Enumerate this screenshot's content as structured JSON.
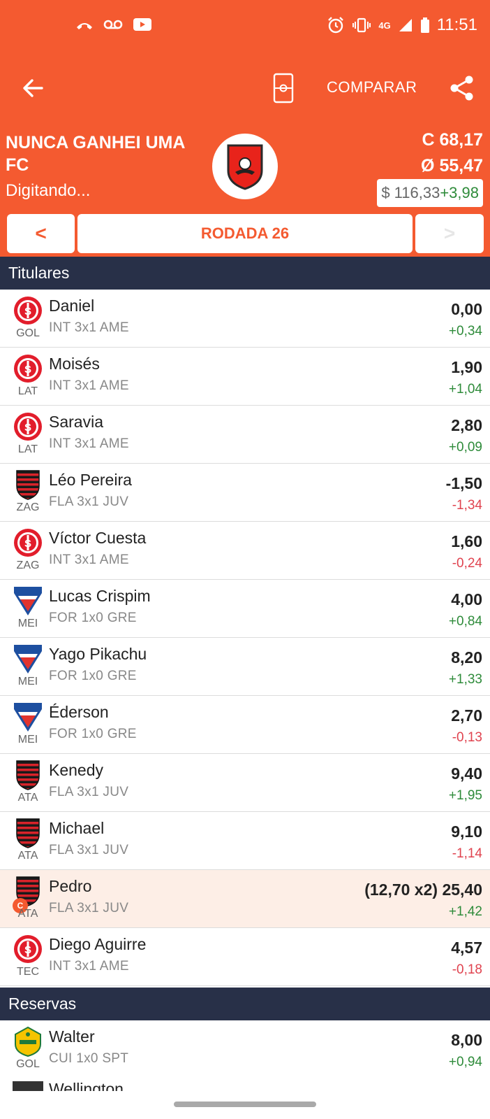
{
  "status_bar": {
    "time": "11:51",
    "network": "4G",
    "left_icons": [
      "missed-call-icon",
      "voicemail-icon",
      "youtube-icon"
    ],
    "right_icons": [
      "alarm-icon",
      "vibrate-icon",
      "signal-icon",
      "battery-icon"
    ]
  },
  "toolbar": {
    "compare_label": "COMPARAR"
  },
  "team": {
    "name": "NUNCA GANHEI UMA FC",
    "status": "Digitando...",
    "stat_c": "C 68,17",
    "stat_avg": "Ø 55,47",
    "balance": "$ 116,33",
    "balance_delta": "+3,98"
  },
  "round_nav": {
    "prev": "<",
    "label": "RODADA 26",
    "next": ">"
  },
  "sections": {
    "starters": "Titulares",
    "reserves": "Reservas"
  },
  "starters": [
    {
      "name": "Daniel",
      "pos": "GOL",
      "match": "INT 3x1 AME",
      "score": "0,00",
      "variation": "+0,34",
      "club": "inter"
    },
    {
      "name": "Moisés",
      "pos": "LAT",
      "match": "INT 3x1 AME",
      "score": "1,90",
      "variation": "+1,04",
      "club": "inter"
    },
    {
      "name": "Saravia",
      "pos": "LAT",
      "match": "INT 3x1 AME",
      "score": "2,80",
      "variation": "+0,09",
      "club": "inter"
    },
    {
      "name": "Léo Pereira",
      "pos": "ZAG",
      "match": "FLA 3x1 JUV",
      "score": "-1,50",
      "variation": "-1,34",
      "club": "flamengo"
    },
    {
      "name": "Víctor Cuesta",
      "pos": "ZAG",
      "match": "INT 3x1 AME",
      "score": "1,60",
      "variation": "-0,24",
      "club": "inter"
    },
    {
      "name": "Lucas Crispim",
      "pos": "MEI",
      "match": "FOR 1x0 GRE",
      "score": "4,00",
      "variation": "+0,84",
      "club": "fortaleza"
    },
    {
      "name": "Yago Pikachu",
      "pos": "MEI",
      "match": "FOR 1x0 GRE",
      "score": "8,20",
      "variation": "+1,33",
      "club": "fortaleza"
    },
    {
      "name": "Éderson",
      "pos": "MEI",
      "match": "FOR 1x0 GRE",
      "score": "2,70",
      "variation": "-0,13",
      "club": "fortaleza"
    },
    {
      "name": "Kenedy",
      "pos": "ATA",
      "match": "FLA 3x1 JUV",
      "score": "9,40",
      "variation": "+1,95",
      "club": "flamengo"
    },
    {
      "name": "Michael",
      "pos": "ATA",
      "match": "FLA 3x1 JUV",
      "score": "9,10",
      "variation": "-1,14",
      "club": "flamengo"
    },
    {
      "name": "Pedro",
      "pos": "ATA",
      "match": "FLA 3x1 JUV",
      "score": "(12,70 x2) 25,40",
      "variation": "+1,42",
      "club": "flamengo",
      "captain": true,
      "captain_badge": "C"
    },
    {
      "name": "Diego Aguirre",
      "pos": "TEC",
      "match": "INT 3x1 AME",
      "score": "4,57",
      "variation": "-0,18",
      "club": "inter"
    }
  ],
  "reserves": [
    {
      "name": "Walter",
      "pos": "GOL",
      "match": "CUI 1x0 SPT",
      "score": "8,00",
      "variation": "+0,94",
      "club": "cuiaba"
    }
  ],
  "peek_row": {
    "name": "Wellington"
  },
  "colors": {
    "accent": "#f45a30",
    "section_bg": "#283048",
    "positive": "#2e8b3a",
    "negative": "#e0434f",
    "captain_row": "#fdeee6"
  }
}
